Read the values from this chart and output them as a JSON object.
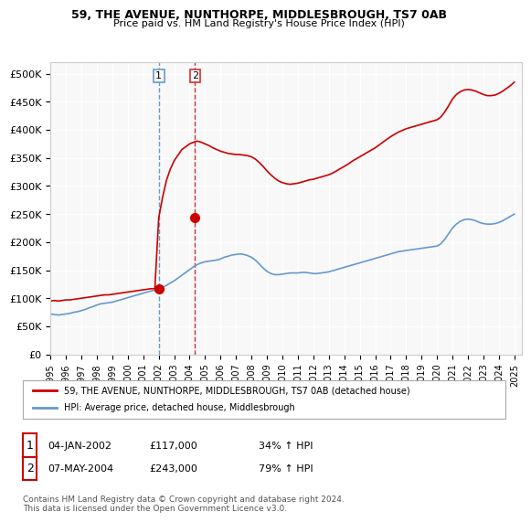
{
  "title": "59, THE AVENUE, NUNTHORPE, MIDDLESBROUGH, TS7 0AB",
  "subtitle": "Price paid vs. HM Land Registry's House Price Index (HPI)",
  "xlim_start": 1995.0,
  "xlim_end": 2025.5,
  "ylim_min": 0,
  "ylim_max": 520000,
  "yticks": [
    0,
    50000,
    100000,
    150000,
    200000,
    250000,
    300000,
    350000,
    400000,
    450000,
    500000
  ],
  "ytick_labels": [
    "£0",
    "£50K",
    "£100K",
    "£150K",
    "£200K",
    "£250K",
    "£300K",
    "£350K",
    "£400K",
    "£450K",
    "£500K"
  ],
  "xtick_years": [
    1995,
    1996,
    1997,
    1998,
    1999,
    2000,
    2001,
    2002,
    2003,
    2004,
    2005,
    2006,
    2007,
    2008,
    2009,
    2010,
    2011,
    2012,
    2013,
    2014,
    2015,
    2016,
    2017,
    2018,
    2019,
    2020,
    2021,
    2022,
    2023,
    2024,
    2025
  ],
  "hpi_color": "#6699cc",
  "price_color": "#cc0000",
  "marker_color_1": "#cc0000",
  "marker_color_2": "#cc0000",
  "vline_color_1": "#6699cc",
  "vline_color_2": "#cc3333",
  "transaction_1_x": 2002.01,
  "transaction_1_y": 117000,
  "transaction_2_x": 2004.35,
  "transaction_2_y": 243000,
  "legend_label_red": "59, THE AVENUE, NUNTHORPE, MIDDLESBROUGH, TS7 0AB (detached house)",
  "legend_label_blue": "HPI: Average price, detached house, Middlesbrough",
  "table_row1_num": "1",
  "table_row1_date": "04-JAN-2002",
  "table_row1_price": "£117,000",
  "table_row1_hpi": "34% ↑ HPI",
  "table_row2_num": "2",
  "table_row2_date": "07-MAY-2004",
  "table_row2_price": "£243,000",
  "table_row2_hpi": "79% ↑ HPI",
  "footer": "Contains HM Land Registry data © Crown copyright and database right 2024.\nThis data is licensed under the Open Government Licence v3.0.",
  "hpi_x": [
    1995.0,
    1995.25,
    1995.5,
    1995.75,
    1996.0,
    1996.25,
    1996.5,
    1996.75,
    1997.0,
    1997.25,
    1997.5,
    1997.75,
    1998.0,
    1998.25,
    1998.5,
    1998.75,
    1999.0,
    1999.25,
    1999.5,
    1999.75,
    2000.0,
    2000.25,
    2000.5,
    2000.75,
    2001.0,
    2001.25,
    2001.5,
    2001.75,
    2002.0,
    2002.25,
    2002.5,
    2002.75,
    2003.0,
    2003.25,
    2003.5,
    2003.75,
    2004.0,
    2004.25,
    2004.5,
    2004.75,
    2005.0,
    2005.25,
    2005.5,
    2005.75,
    2006.0,
    2006.25,
    2006.5,
    2006.75,
    2007.0,
    2007.25,
    2007.5,
    2007.75,
    2008.0,
    2008.25,
    2008.5,
    2008.75,
    2009.0,
    2009.25,
    2009.5,
    2009.75,
    2010.0,
    2010.25,
    2010.5,
    2010.75,
    2011.0,
    2011.25,
    2011.5,
    2011.75,
    2012.0,
    2012.25,
    2012.5,
    2012.75,
    2013.0,
    2013.25,
    2013.5,
    2013.75,
    2014.0,
    2014.25,
    2014.5,
    2014.75,
    2015.0,
    2015.25,
    2015.5,
    2015.75,
    2016.0,
    2016.25,
    2016.5,
    2016.75,
    2017.0,
    2017.25,
    2017.5,
    2017.75,
    2018.0,
    2018.25,
    2018.5,
    2018.75,
    2019.0,
    2019.25,
    2019.5,
    2019.75,
    2020.0,
    2020.25,
    2020.5,
    2020.75,
    2021.0,
    2021.25,
    2021.5,
    2021.75,
    2022.0,
    2022.25,
    2022.5,
    2022.75,
    2023.0,
    2023.25,
    2023.5,
    2023.75,
    2024.0,
    2024.25,
    2024.5,
    2024.75,
    2025.0
  ],
  "hpi_y": [
    72000,
    71000,
    70000,
    71000,
    72000,
    73000,
    75000,
    76000,
    78000,
    80000,
    83000,
    85000,
    88000,
    90000,
    91000,
    92000,
    93000,
    95000,
    97000,
    99000,
    101000,
    103000,
    105000,
    107000,
    109000,
    111000,
    113000,
    114000,
    116000,
    119000,
    123000,
    127000,
    131000,
    136000,
    141000,
    146000,
    151000,
    156000,
    160000,
    163000,
    165000,
    166000,
    167000,
    168000,
    170000,
    173000,
    175000,
    177000,
    178000,
    179000,
    178000,
    176000,
    173000,
    168000,
    161000,
    154000,
    148000,
    144000,
    142000,
    142000,
    143000,
    144000,
    145000,
    145000,
    145000,
    146000,
    146000,
    145000,
    144000,
    144000,
    145000,
    146000,
    147000,
    149000,
    151000,
    153000,
    155000,
    157000,
    159000,
    161000,
    163000,
    165000,
    167000,
    169000,
    171000,
    173000,
    175000,
    177000,
    179000,
    181000,
    183000,
    184000,
    185000,
    186000,
    187000,
    188000,
    189000,
    190000,
    191000,
    192000,
    193000,
    197000,
    205000,
    215000,
    225000,
    232000,
    237000,
    240000,
    241000,
    240000,
    238000,
    235000,
    233000,
    232000,
    232000,
    233000,
    235000,
    238000,
    242000,
    246000,
    250000
  ],
  "price_x": [
    1995.0,
    1995.25,
    1995.5,
    1995.75,
    1996.0,
    1996.25,
    1996.5,
    1996.75,
    1997.0,
    1997.25,
    1997.5,
    1997.75,
    1998.0,
    1998.25,
    1998.5,
    1998.75,
    1999.0,
    1999.25,
    1999.5,
    1999.75,
    2000.0,
    2000.25,
    2000.5,
    2000.75,
    2001.0,
    2001.25,
    2001.5,
    2001.75,
    2002.0,
    2002.25,
    2002.5,
    2002.75,
    2003.0,
    2003.25,
    2003.5,
    2003.75,
    2004.0,
    2004.25,
    2004.5,
    2004.75,
    2005.0,
    2005.25,
    2005.5,
    2005.75,
    2006.0,
    2006.25,
    2006.5,
    2006.75,
    2007.0,
    2007.25,
    2007.5,
    2007.75,
    2008.0,
    2008.25,
    2008.5,
    2008.75,
    2009.0,
    2009.25,
    2009.5,
    2009.75,
    2010.0,
    2010.25,
    2010.5,
    2010.75,
    2011.0,
    2011.25,
    2011.5,
    2011.75,
    2012.0,
    2012.25,
    2012.5,
    2012.75,
    2013.0,
    2013.25,
    2013.5,
    2013.75,
    2014.0,
    2014.25,
    2014.5,
    2014.75,
    2015.0,
    2015.25,
    2015.5,
    2015.75,
    2016.0,
    2016.25,
    2016.5,
    2016.75,
    2017.0,
    2017.25,
    2017.5,
    2017.75,
    2018.0,
    2018.25,
    2018.5,
    2018.75,
    2019.0,
    2019.25,
    2019.5,
    2019.75,
    2020.0,
    2020.25,
    2020.5,
    2020.75,
    2021.0,
    2021.25,
    2021.5,
    2021.75,
    2022.0,
    2022.25,
    2022.5,
    2022.75,
    2023.0,
    2023.25,
    2023.5,
    2023.75,
    2024.0,
    2024.25,
    2024.5,
    2024.75,
    2025.0
  ],
  "price_y": [
    95000,
    96000,
    95000,
    96000,
    97000,
    97000,
    98000,
    99000,
    100000,
    101000,
    102000,
    103000,
    104000,
    105000,
    106000,
    106000,
    107000,
    108000,
    109000,
    110000,
    111000,
    112000,
    113000,
    114000,
    115000,
    116000,
    117000,
    117000,
    243000,
    280000,
    310000,
    330000,
    345000,
    355000,
    365000,
    370000,
    375000,
    378000,
    380000,
    378000,
    375000,
    372000,
    368000,
    365000,
    362000,
    360000,
    358000,
    357000,
    356000,
    356000,
    355000,
    354000,
    352000,
    348000,
    342000,
    335000,
    327000,
    320000,
    314000,
    309000,
    306000,
    304000,
    303000,
    304000,
    305000,
    307000,
    309000,
    311000,
    312000,
    314000,
    316000,
    318000,
    320000,
    323000,
    327000,
    331000,
    335000,
    339000,
    344000,
    348000,
    352000,
    356000,
    360000,
    364000,
    368000,
    373000,
    378000,
    383000,
    388000,
    392000,
    396000,
    399000,
    402000,
    404000,
    406000,
    408000,
    410000,
    412000,
    414000,
    416000,
    418000,
    423000,
    432000,
    443000,
    455000,
    463000,
    468000,
    471000,
    472000,
    471000,
    469000,
    466000,
    463000,
    461000,
    461000,
    462000,
    465000,
    469000,
    474000,
    479000,
    485000
  ]
}
